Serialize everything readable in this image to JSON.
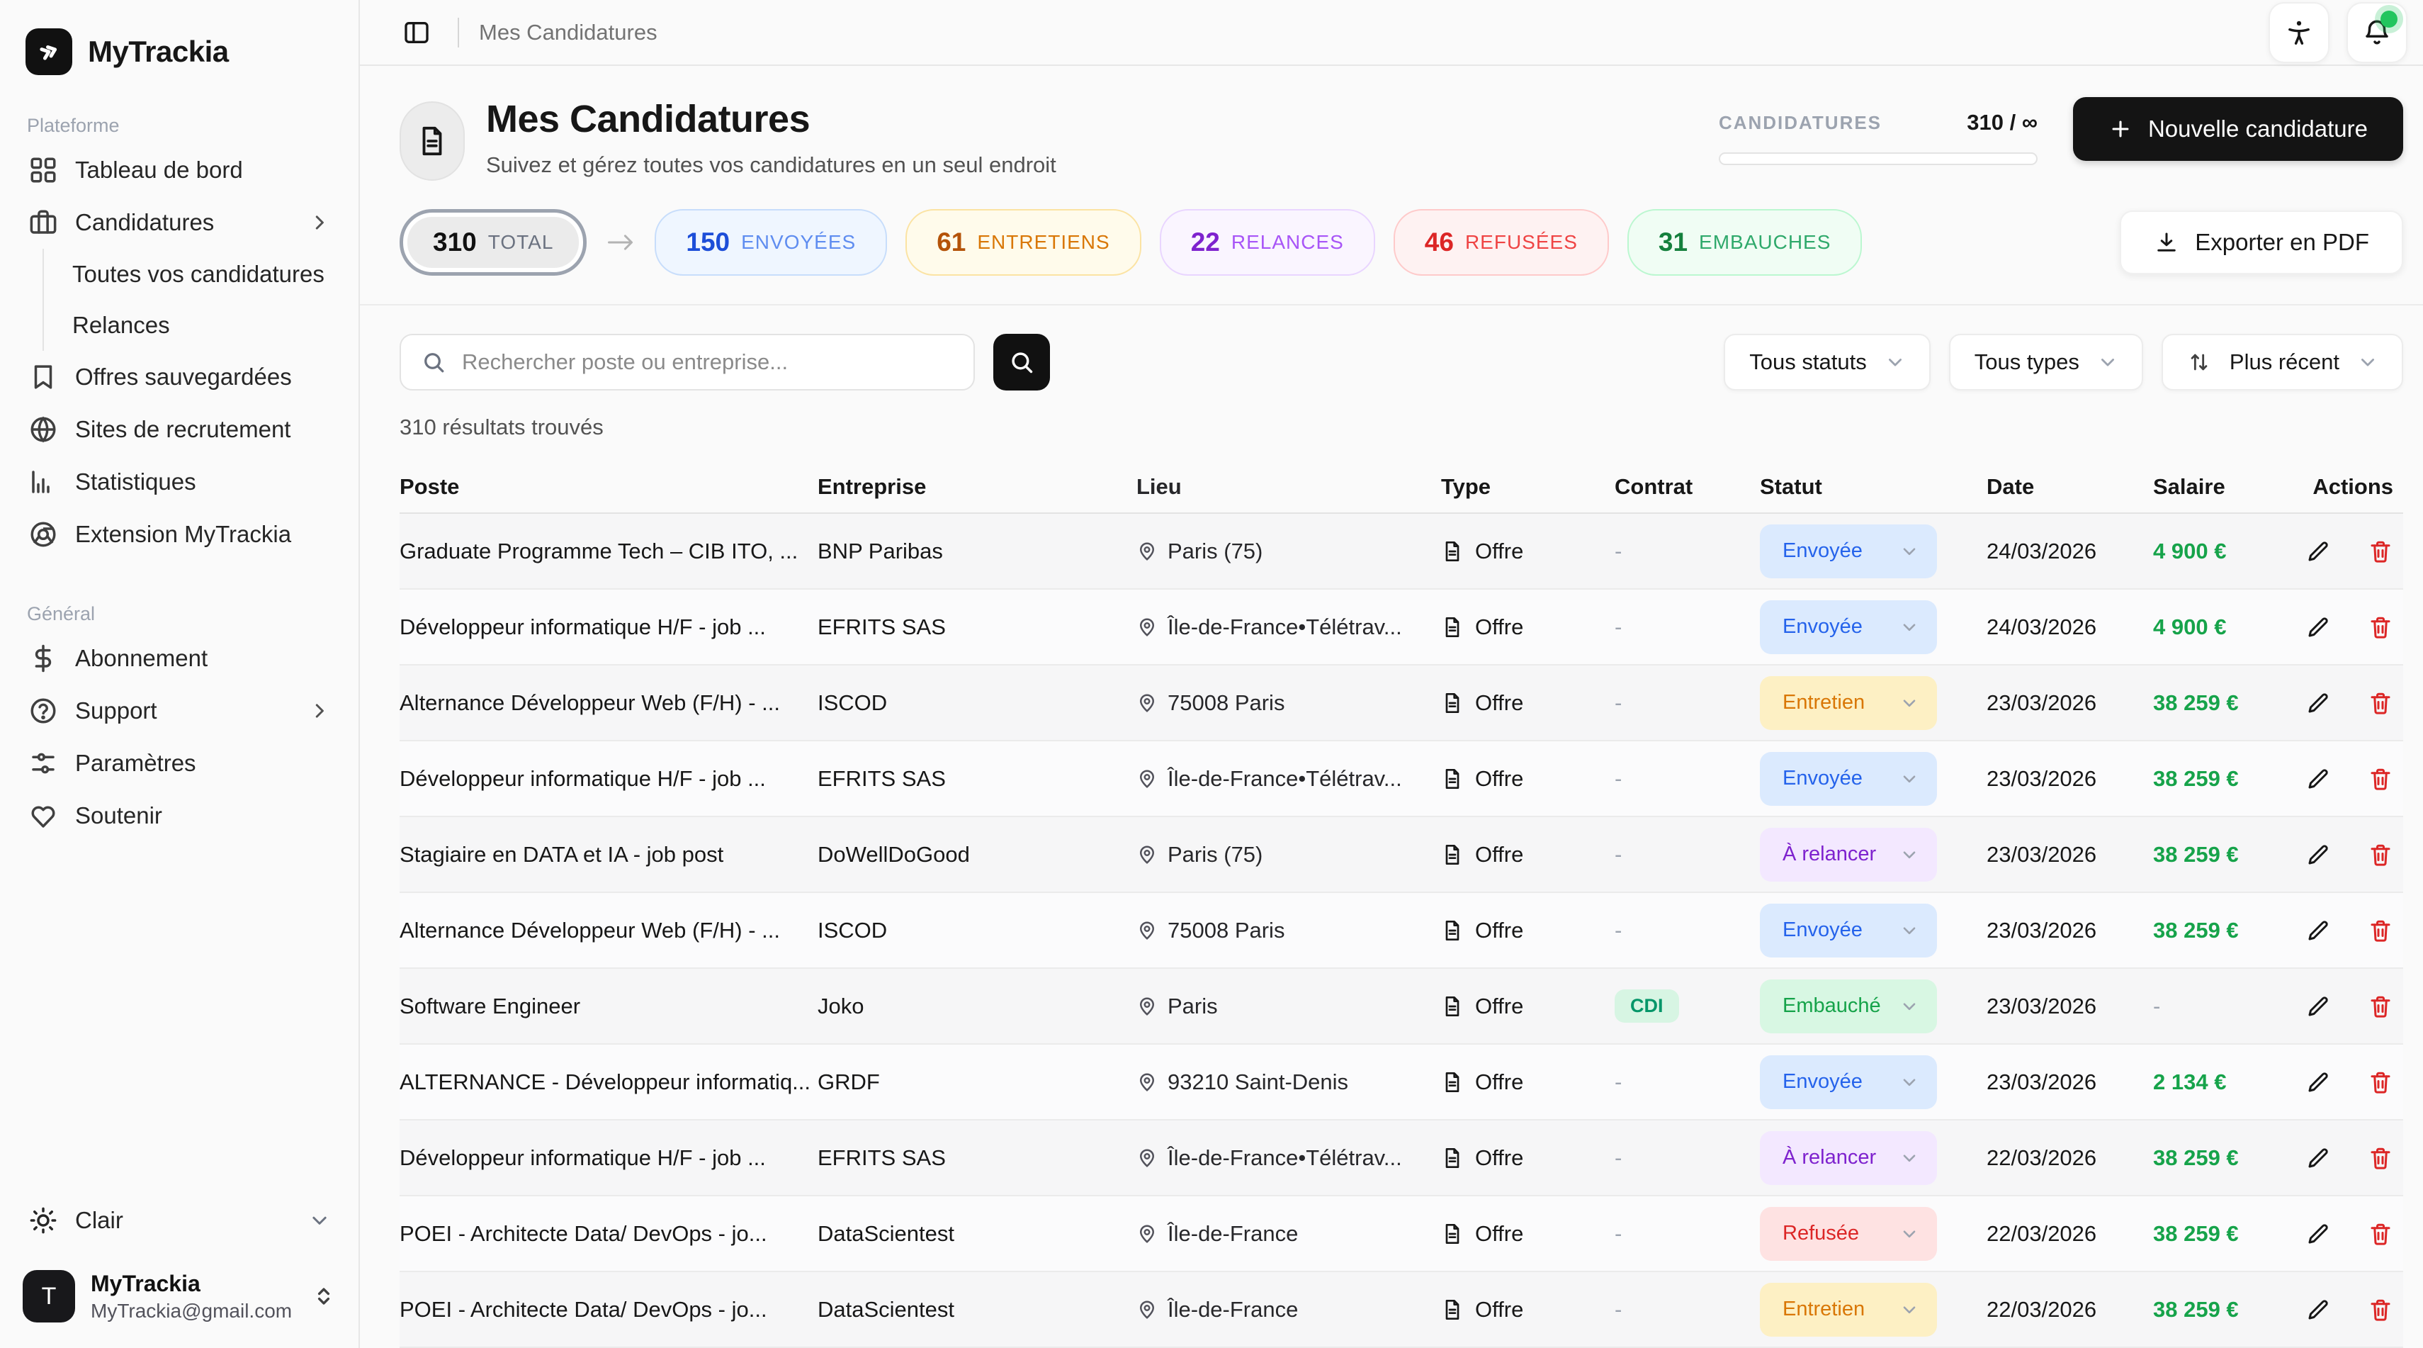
{
  "colors": {
    "accent_black": "#141414",
    "status_envoyee_bg": "#dbeafe",
    "status_envoyee_text": "#2563eb",
    "status_entretien_bg": "#fdf0c4",
    "status_entretien_text": "#d97706",
    "status_a_relancer_bg": "#f3e8ff",
    "status_a_relancer_text": "#7e22ce",
    "status_refusee_bg": "#fee2e2",
    "status_refusee_text": "#dc2626",
    "status_embauche_bg": "#d8f7e3",
    "status_embauche_text": "#16a34a",
    "salary_green": "#16a34a",
    "notification_dot": "#22c55e"
  },
  "sidebar": {
    "brand": "MyTrackia",
    "section_plateforme": "Plateforme",
    "dashboard": "Tableau de bord",
    "candidatures": "Candidatures",
    "toutes": "Toutes vos candidatures",
    "relances": "Relances",
    "offres": "Offres sauvegardées",
    "sites": "Sites de recrutement",
    "stats": "Statistiques",
    "extension": "Extension MyTrackia",
    "section_general": "Général",
    "abonnement": "Abonnement",
    "support": "Support",
    "parametres": "Paramètres",
    "soutenir": "Soutenir",
    "theme": "Clair",
    "account_name": "MyTrackia",
    "account_email": "MyTrackia@gmail.com",
    "avatar_initial": "T"
  },
  "topbar": {
    "breadcrumb": "Mes Candidatures"
  },
  "header": {
    "title": "Mes Candidatures",
    "subtitle": "Suivez et gérez toutes vos candidatures en un seul endroit",
    "quota_label": "CANDIDATURES",
    "quota_value": "310 / ∞",
    "new_button": "Nouvelle candidature"
  },
  "stats": {
    "total": {
      "value": "310",
      "label": "TOTAL"
    },
    "envoyees": {
      "value": "150",
      "label": "ENVOYÉES"
    },
    "entretiens": {
      "value": "61",
      "label": "ENTRETIENS"
    },
    "relances": {
      "value": "22",
      "label": "RELANCES"
    },
    "refusees": {
      "value": "46",
      "label": "REFUSÉES"
    },
    "embauches": {
      "value": "31",
      "label": "EMBAUCHES"
    },
    "export_button": "Exporter en PDF"
  },
  "toolbar": {
    "search_placeholder": "Rechercher poste ou entreprise...",
    "filter_status": "Tous statuts",
    "filter_type": "Tous types",
    "sort": "Plus récent"
  },
  "results_text": "310 résultats trouvés",
  "table": {
    "headers": [
      "Poste",
      "Entreprise",
      "Lieu",
      "Type",
      "Contrat",
      "Statut",
      "Date",
      "Salaire",
      "Actions"
    ],
    "rows": [
      {
        "poste": "Graduate Programme Tech – CIB ITO, ...",
        "entreprise": "BNP Paribas",
        "lieu": "Paris (75)",
        "type": "Offre",
        "contrat": "-",
        "statut": "Envoyée",
        "statut_key": "envoyee",
        "date": "24/03/2026",
        "salaire": "4 900 €"
      },
      {
        "poste": "Développeur informatique H/F - job ...",
        "entreprise": "EFRITS SAS",
        "lieu": "Île-de-France•Télétrav...",
        "type": "Offre",
        "contrat": "-",
        "statut": "Envoyée",
        "statut_key": "envoyee",
        "date": "24/03/2026",
        "salaire": "4 900 €"
      },
      {
        "poste": "Alternance Développeur Web (F/H) - ...",
        "entreprise": "ISCOD",
        "lieu": "75008 Paris",
        "type": "Offre",
        "contrat": "-",
        "statut": "Entretien",
        "statut_key": "entretien",
        "date": "23/03/2026",
        "salaire": "38 259 €"
      },
      {
        "poste": "Développeur informatique H/F - job ...",
        "entreprise": "EFRITS SAS",
        "lieu": "Île-de-France•Télétrav...",
        "type": "Offre",
        "contrat": "-",
        "statut": "Envoyée",
        "statut_key": "envoyee",
        "date": "23/03/2026",
        "salaire": "38 259 €"
      },
      {
        "poste": "Stagiaire en DATA et IA - job post",
        "entreprise": "DoWellDoGood",
        "lieu": "Paris (75)",
        "type": "Offre",
        "contrat": "-",
        "statut": "À relancer",
        "statut_key": "a_relancer",
        "date": "23/03/2026",
        "salaire": "38 259 €"
      },
      {
        "poste": "Alternance Développeur Web (F/H) - ...",
        "entreprise": "ISCOD",
        "lieu": "75008 Paris",
        "type": "Offre",
        "contrat": "-",
        "statut": "Envoyée",
        "statut_key": "envoyee",
        "date": "23/03/2026",
        "salaire": "38 259 €"
      },
      {
        "poste": "Software Engineer",
        "entreprise": "Joko",
        "lieu": "Paris",
        "type": "Offre",
        "contrat": "CDI",
        "statut": "Embauché",
        "statut_key": "embauche",
        "date": "23/03/2026",
        "salaire": "-"
      },
      {
        "poste": "ALTERNANCE - Développeur informatiq...",
        "entreprise": "GRDF",
        "lieu": "93210 Saint-Denis",
        "type": "Offre",
        "contrat": "-",
        "statut": "Envoyée",
        "statut_key": "envoyee",
        "date": "23/03/2026",
        "salaire": "2 134 €"
      },
      {
        "poste": "Développeur informatique H/F - job ...",
        "entreprise": "EFRITS SAS",
        "lieu": "Île-de-France•Télétrav...",
        "type": "Offre",
        "contrat": "-",
        "statut": "À relancer",
        "statut_key": "a_relancer",
        "date": "22/03/2026",
        "salaire": "38 259 €"
      },
      {
        "poste": "POEI - Architecte Data/ DevOps - jo...",
        "entreprise": "DataScientest",
        "lieu": "Île-de-France",
        "type": "Offre",
        "contrat": "-",
        "statut": "Refusée",
        "statut_key": "refusee",
        "date": "22/03/2026",
        "salaire": "38 259 €"
      },
      {
        "poste": "POEI - Architecte Data/ DevOps - jo...",
        "entreprise": "DataScientest",
        "lieu": "Île-de-France",
        "type": "Offre",
        "contrat": "-",
        "statut": "Entretien",
        "statut_key": "entretien",
        "date": "22/03/2026",
        "salaire": "38 259 €"
      }
    ]
  }
}
